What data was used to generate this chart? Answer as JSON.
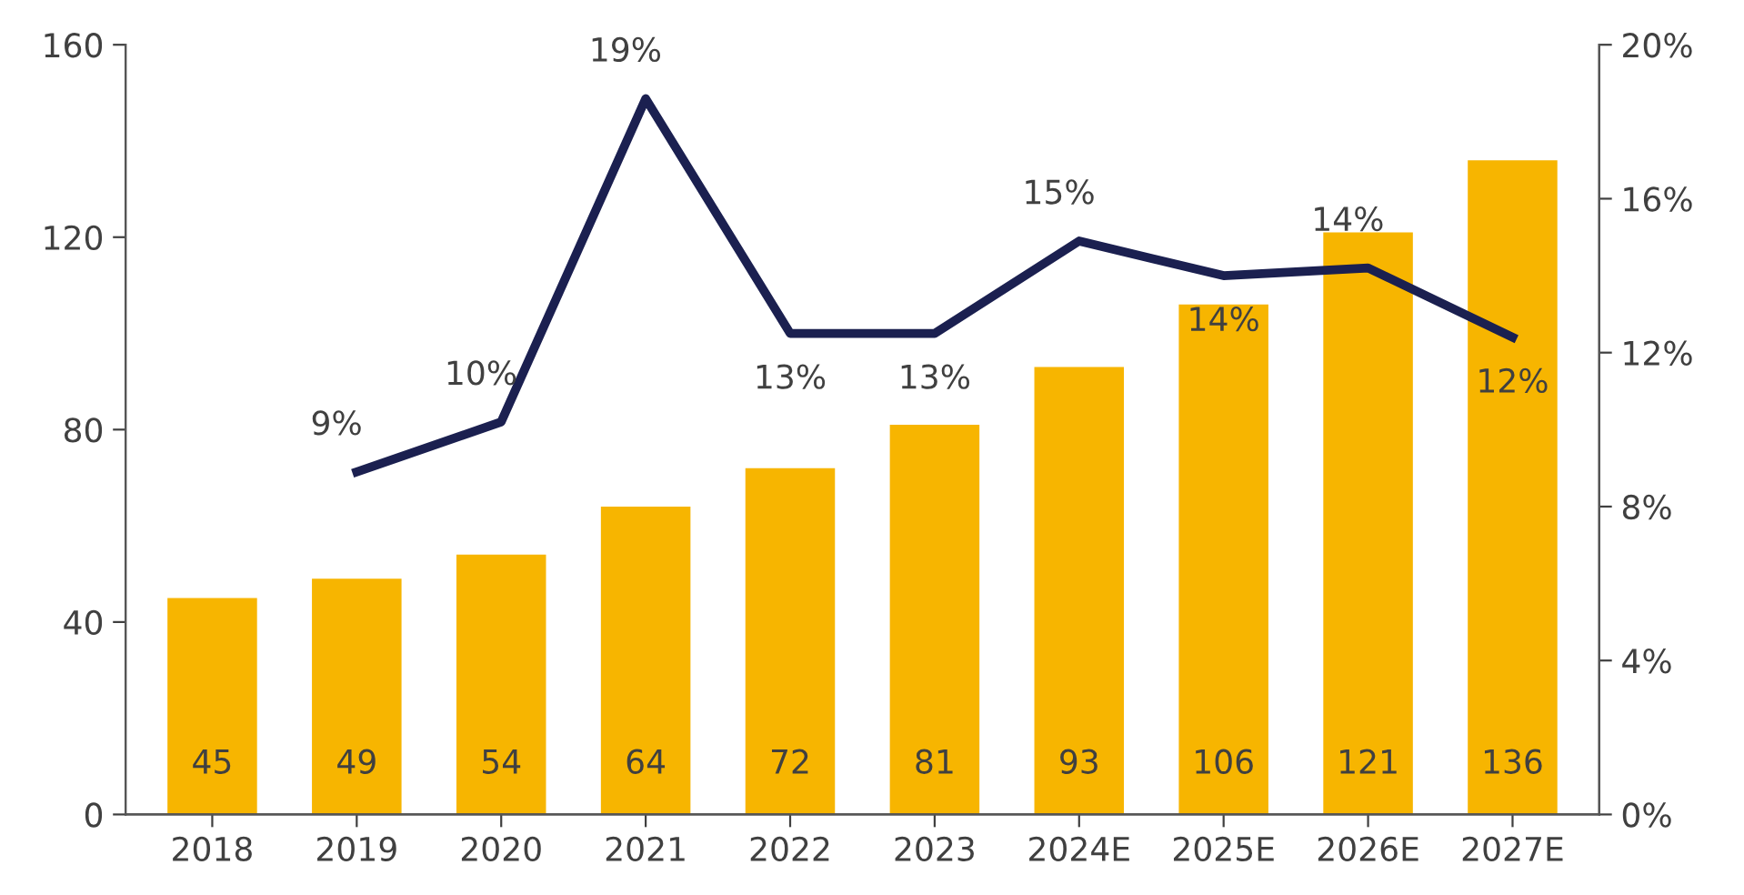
{
  "chart_data": {
    "type": "bar",
    "categories": [
      "2018",
      "2019",
      "2020",
      "2021",
      "2022",
      "2023",
      "2024E",
      "2025E",
      "2026E",
      "2027E"
    ],
    "series": [
      {
        "color": "#f7b500",
        "values": [
          45,
          49,
          54,
          64,
          72,
          81,
          93,
          106,
          121,
          136
        ],
        "data_labels": true
      },
      {
        "type": "line",
        "axis": "y2",
        "color": "#1b2050",
        "values": [
          null,
          8.9,
          10.2,
          18.6,
          12.5,
          12.5,
          14.9,
          14.0,
          14.2,
          12.4
        ],
        "value_labels": [
          null,
          "9%",
          "10%",
          "19%",
          "13%",
          "13%",
          "15%",
          "14%",
          "14%",
          "12%"
        ]
      }
    ],
    "ylim": [
      0,
      160
    ],
    "yticks": [
      0,
      40,
      80,
      120,
      160
    ],
    "y2lim": [
      0,
      20
    ],
    "y2ticks": [
      {
        "value": 0,
        "label": "0%"
      },
      {
        "value": 4,
        "label": "4%"
      },
      {
        "value": 8,
        "label": "8%"
      },
      {
        "value": 12,
        "label": "12%"
      },
      {
        "value": 16,
        "label": "16%"
      },
      {
        "value": 20,
        "label": "20%"
      }
    ],
    "grid": false,
    "legend": false,
    "marker": "none",
    "line_style": "solid"
  }
}
